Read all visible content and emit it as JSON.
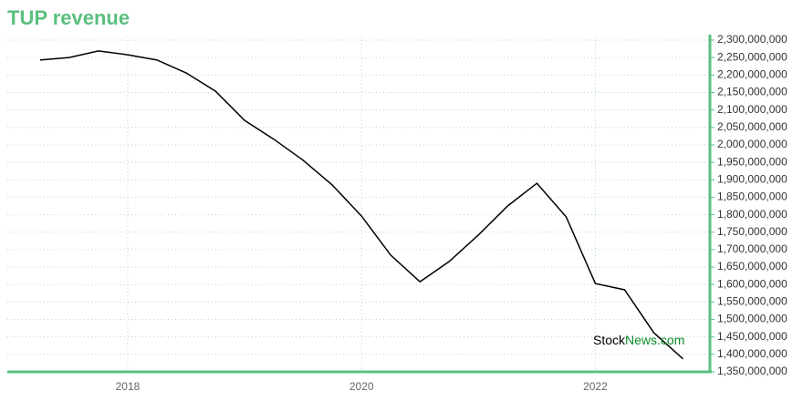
{
  "chart_data": {
    "type": "line",
    "title": "TUP revenue",
    "brand": [
      "Stock",
      "News.com"
    ],
    "x": [
      2017.25,
      2017.5,
      2017.75,
      2018,
      2018.25,
      2018.5,
      2018.75,
      2019,
      2019.25,
      2019.5,
      2019.75,
      2020,
      2020.25,
      2020.5,
      2020.75,
      2021,
      2021.25,
      2021.5,
      2021.75,
      2022,
      2022.25,
      2022.5,
      2022.75
    ],
    "series": [
      {
        "name": "TUP revenue",
        "color": "#000000",
        "values": [
          2243000000,
          2250000000,
          2269000000,
          2258000000,
          2243000000,
          2206000000,
          2154000000,
          2070000000,
          2016000000,
          1956000000,
          1885000000,
          1796000000,
          1684000000,
          1608000000,
          1666000000,
          1742000000,
          1825000000,
          1890000000,
          1794000000,
          1603000000,
          1585000000,
          1462000000,
          1387000000
        ]
      }
    ],
    "xlim": [
      2016.97,
      2022.98
    ],
    "xticks": [
      2018,
      2020,
      2022
    ],
    "ylim": [
      1350000000,
      2300000000
    ],
    "yticks": [
      {
        "value": 1350000000,
        "label": "1,350,000,000"
      },
      {
        "value": 1400000000,
        "label": "1,400,000,000"
      },
      {
        "value": 1450000000,
        "label": "1,450,000,000"
      },
      {
        "value": 1500000000,
        "label": "1,500,000,000"
      },
      {
        "value": 1550000000,
        "label": "1,550,000,000"
      },
      {
        "value": 1600000000,
        "label": "1,600,000,000"
      },
      {
        "value": 1650000000,
        "label": "1,650,000,000"
      },
      {
        "value": 1700000000,
        "label": "1,700,000,000"
      },
      {
        "value": 1750000000,
        "label": "1,750,000,000"
      },
      {
        "value": 1800000000,
        "label": "1,800,000,000"
      },
      {
        "value": 1850000000,
        "label": "1,850,000,000"
      },
      {
        "value": 1900000000,
        "label": "1,900,000,000"
      },
      {
        "value": 1950000000,
        "label": "1,950,000,000"
      },
      {
        "value": 2000000000,
        "label": "2,000,000,000"
      },
      {
        "value": 2050000000,
        "label": "2,050,000,000"
      },
      {
        "value": 2100000000,
        "label": "2,100,000,000"
      },
      {
        "value": 2150000000,
        "label": "2,150,000,000"
      },
      {
        "value": 2200000000,
        "label": "2,200,000,000"
      },
      {
        "value": 2250000000,
        "label": "2,250,000,000"
      },
      {
        "value": 2300000000,
        "label": "2,300,000,000"
      }
    ],
    "grid": true,
    "axis_color": "#5bbf7f"
  }
}
